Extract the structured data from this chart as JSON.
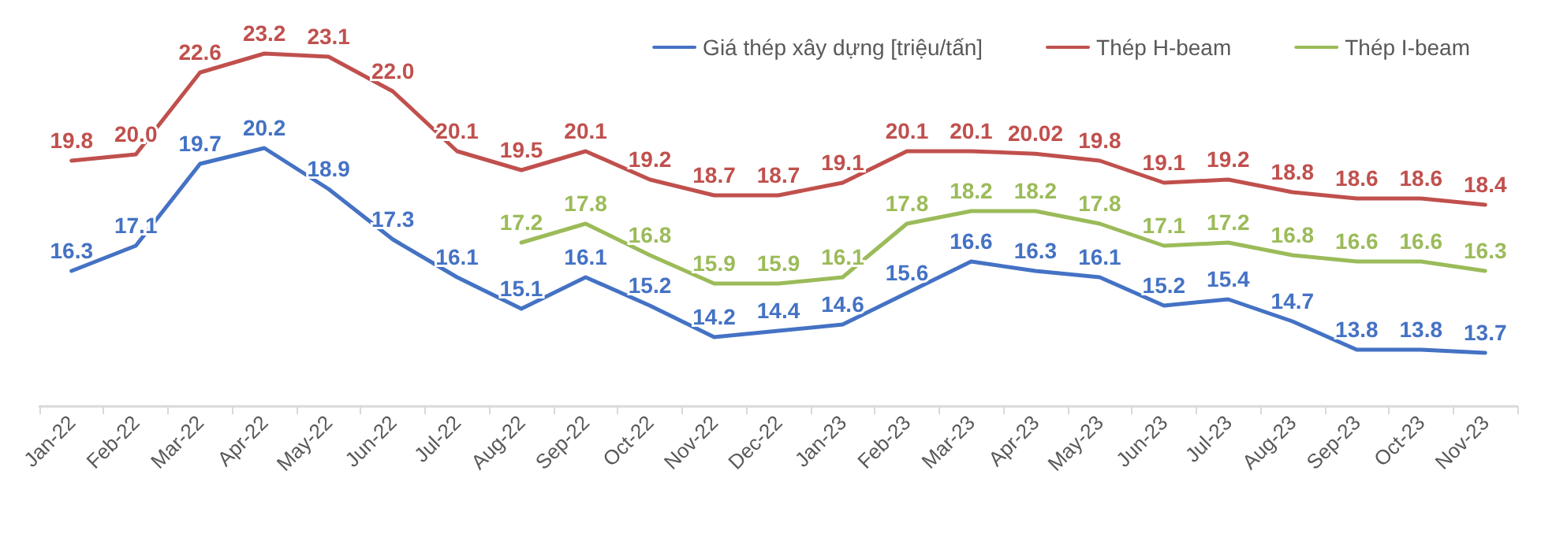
{
  "chart_data": {
    "type": "line",
    "categories": [
      "Jan-22",
      "Feb-22",
      "Mar-22",
      "Apr-22",
      "May-22",
      "Jun-22",
      "Jul-22",
      "Aug-22",
      "Sep-22",
      "Oct-22",
      "Nov-22",
      "Dec-22",
      "Jan-23",
      "Feb-23",
      "Mar-23",
      "Apr-23",
      "May-23",
      "Jun-23",
      "Jul-23",
      "Aug-23",
      "Sep-23",
      "Oct-23",
      "Nov-23"
    ],
    "series": [
      {
        "name": "Giá thép xây dựng [triệu/tấn]",
        "color": "#4472c4",
        "values": [
          16.3,
          17.1,
          19.7,
          20.2,
          18.9,
          17.3,
          16.1,
          15.1,
          16.1,
          15.2,
          14.2,
          14.4,
          14.6,
          15.6,
          16.6,
          16.3,
          16.1,
          15.2,
          15.4,
          14.7,
          13.8,
          13.8,
          13.7
        ],
        "value_labels": [
          "16.3",
          "17.1",
          "19.7",
          "20.2",
          "18.9",
          "17.3",
          "16.1",
          "15.1",
          "16.1",
          "15.2",
          "14.2",
          "14.4",
          "14.6",
          "15.6",
          "16.6",
          "16.3",
          "16.1",
          "15.2",
          "15.4",
          "14.7",
          "13.8",
          "13.8",
          "13.7"
        ]
      },
      {
        "name": "Thép H-beam",
        "color": "#c0504d",
        "values": [
          19.8,
          20.0,
          22.6,
          23.2,
          23.1,
          22.0,
          20.1,
          19.5,
          20.1,
          19.2,
          18.7,
          18.7,
          19.1,
          20.1,
          20.1,
          20.02,
          19.8,
          19.1,
          19.2,
          18.8,
          18.6,
          18.6,
          18.4
        ],
        "value_labels": [
          "19.8",
          "20.0",
          "22.6",
          "23.2",
          "23.1",
          "22.0",
          "20.1",
          "19.5",
          "20.1",
          "19.2",
          "18.7",
          "18.7",
          "19.1",
          "20.1",
          "20.1",
          "20.02",
          "19.8",
          "19.1",
          "19.2",
          "18.8",
          "18.6",
          "18.6",
          "18.4"
        ]
      },
      {
        "name": "Thép I-beam",
        "color": "#9bbb59",
        "values": [
          null,
          null,
          null,
          null,
          null,
          null,
          null,
          17.2,
          17.8,
          16.8,
          15.9,
          15.9,
          16.1,
          17.8,
          18.2,
          18.2,
          17.8,
          17.1,
          17.2,
          16.8,
          16.6,
          16.6,
          16.3
        ],
        "value_labels": [
          null,
          null,
          null,
          null,
          null,
          null,
          null,
          "17.2",
          "17.8",
          "16.8",
          "15.9",
          "15.9",
          "16.1",
          "17.8",
          "18.2",
          "18.2",
          "17.8",
          "17.1",
          "17.2",
          "16.8",
          "16.6",
          "16.6",
          "16.3"
        ]
      }
    ],
    "legend": "top right",
    "line_style": "solid",
    "marker": "none",
    "tick_labels": "x"
  }
}
